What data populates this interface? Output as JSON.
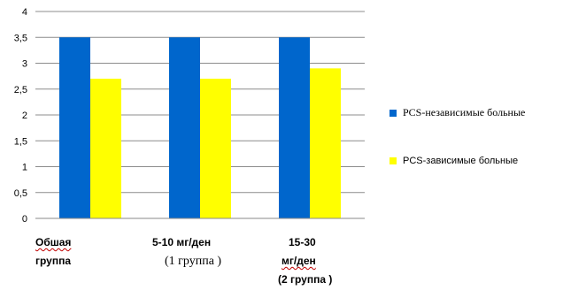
{
  "chart_data": {
    "type": "bar",
    "categories": [
      "Обшая группа",
      "5-10 мг/ден (1 группа )",
      "15-30 мг/ден (2 группа )"
    ],
    "category_lines": [
      [
        "Обшая",
        "группа"
      ],
      [
        "5-10 мг/ден",
        "(1 группа )"
      ],
      [
        "15-30",
        "мг/ден",
        "(2 группа )"
      ]
    ],
    "series": [
      {
        "name": "PCS-независимые больные",
        "values": [
          3.5,
          3.5,
          3.5
        ],
        "color": "#0066cc"
      },
      {
        "name": "PCS-зависимые больные",
        "values": [
          2.7,
          2.7,
          2.9
        ],
        "color": "#ffff00"
      }
    ],
    "ylim": [
      0,
      4
    ],
    "yticks": [
      "0",
      "0,5",
      "1",
      "1,5",
      "2",
      "2,5",
      "3",
      "3,5",
      "4"
    ],
    "grid": true,
    "legend": "right",
    "title": "",
    "xlabel": "",
    "ylabel": ""
  }
}
